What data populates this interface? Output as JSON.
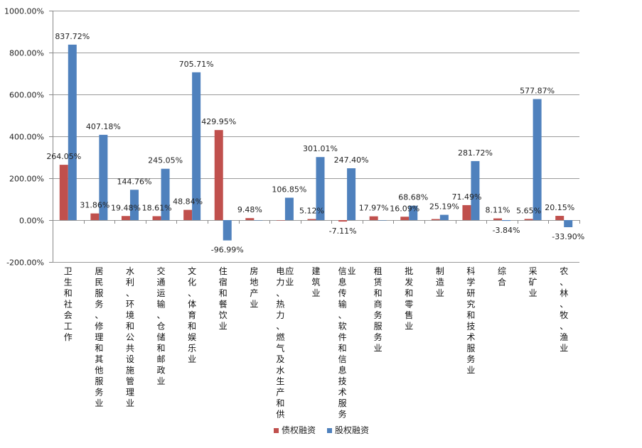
{
  "chart_data": {
    "type": "bar",
    "categories": [
      "卫生和社会工作",
      "居民服务、修理和其他服务业",
      "水利、环境和公共设施管理业",
      "交通运输、仓储和邮政业",
      "文化、体育和娱乐业",
      "住宿和餐饮业",
      "房地产业",
      "电力、热力、燃气及水生产和供应业",
      "建筑业",
      "信息传输、软件和信息技术服务业",
      "租赁和商务服务业",
      "批发和零售业",
      "制造业",
      "科学研究和技术服务业",
      "综合",
      "采矿业",
      "农、林、牧、渔业"
    ],
    "series": [
      {
        "name": "债权融资",
        "color": "#C0504D",
        "values": [
          264.05,
          31.86,
          19.48,
          18.61,
          48.84,
          429.95,
          9.48,
          0,
          5.12,
          -7.11,
          17.97,
          16.09,
          5.0,
          71.49,
          8.11,
          5.65,
          20.15
        ],
        "labels": [
          "264.05%",
          "31.86%",
          "19.48%",
          "18.61%",
          "48.84%",
          "429.95%",
          "9.48%",
          "",
          "5.12%",
          "-7.11%",
          "17.97%",
          "16.09%",
          "",
          "71.49%",
          "8.11%",
          "5.65%",
          "20.15%"
        ]
      },
      {
        "name": "股权融资",
        "color": "#4F81BD",
        "values": [
          837.72,
          407.18,
          144.76,
          245.05,
          705.71,
          -96.99,
          0,
          106.85,
          301.01,
          247.4,
          0,
          68.68,
          25.19,
          281.72,
          -3.84,
          577.87,
          -33.9
        ],
        "labels": [
          "837.72%",
          "407.18%",
          "144.76%",
          "245.05%",
          "705.71%",
          "-96.99%",
          "",
          "106.85%",
          "301.01%",
          "247.40%",
          "",
          "68.68%",
          "25.19%",
          "281.72%",
          "-3.84%",
          "577.87%",
          "-33.90%"
        ]
      }
    ],
    "ylim": [
      -200,
      1000
    ],
    "yticks": [
      "-200.00%",
      "0.00%",
      "200.00%",
      "400.00%",
      "600.00%",
      "800.00%",
      "1000.00%"
    ],
    "ytick_values": [
      -200,
      0,
      200,
      400,
      600,
      800,
      1000
    ],
    "grid": true,
    "legend_position": "bottom"
  }
}
